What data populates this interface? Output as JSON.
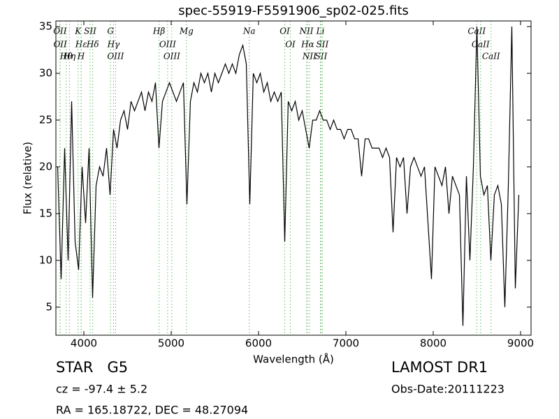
{
  "chart_data": {
    "type": "line",
    "title": "spec-55919-F5591906_sp02-025.fits",
    "xlabel": "Wavelength (Å)",
    "ylabel": "Flux (relative)",
    "xlim": [
      3680,
      9120
    ],
    "ylim": [
      2,
      35.6
    ],
    "xticks": [
      4000,
      5000,
      6000,
      7000,
      8000,
      9000
    ],
    "yticks": [
      5,
      10,
      15,
      20,
      25,
      30,
      35
    ],
    "x": [
      3700,
      3740,
      3780,
      3820,
      3860,
      3900,
      3940,
      3980,
      4020,
      4060,
      4100,
      4140,
      4180,
      4220,
      4260,
      4300,
      4340,
      4380,
      4420,
      4460,
      4500,
      4540,
      4580,
      4620,
      4660,
      4700,
      4740,
      4780,
      4820,
      4860,
      4900,
      4940,
      4980,
      5020,
      5060,
      5100,
      5140,
      5180,
      5220,
      5260,
      5300,
      5340,
      5380,
      5420,
      5460,
      5500,
      5540,
      5580,
      5620,
      5660,
      5700,
      5740,
      5780,
      5820,
      5860,
      5900,
      5940,
      5980,
      6020,
      6060,
      6100,
      6140,
      6180,
      6220,
      6260,
      6300,
      6340,
      6380,
      6420,
      6460,
      6500,
      6540,
      6580,
      6620,
      6660,
      6700,
      6740,
      6780,
      6820,
      6860,
      6900,
      6940,
      6980,
      7020,
      7060,
      7100,
      7140,
      7180,
      7220,
      7260,
      7300,
      7340,
      7380,
      7420,
      7460,
      7500,
      7540,
      7580,
      7620,
      7660,
      7700,
      7740,
      7780,
      7820,
      7860,
      7900,
      7940,
      7980,
      8020,
      8060,
      8100,
      8140,
      8180,
      8220,
      8260,
      8300,
      8340,
      8380,
      8420,
      8460,
      8500,
      8540,
      8580,
      8620,
      8660,
      8700,
      8740,
      8780,
      8820,
      8860,
      8900,
      8940,
      8980
    ],
    "series": [
      {
        "color": "#000000",
        "values": [
          20,
          8,
          22,
          10,
          27,
          12,
          9,
          20,
          14,
          22,
          6,
          18,
          20,
          19,
          22,
          17,
          24,
          22,
          25,
          26,
          24,
          27,
          26,
          27,
          28,
          26,
          28,
          27,
          29,
          22,
          27,
          28,
          29,
          28,
          27,
          28,
          29,
          16,
          27,
          29,
          28,
          30,
          29,
          30,
          28,
          30,
          29,
          30,
          31,
          30,
          31,
          30,
          32,
          33,
          31,
          16,
          30,
          29,
          30,
          28,
          29,
          27,
          28,
          27,
          28,
          12,
          27,
          26,
          27,
          25,
          26,
          24,
          22,
          25,
          25,
          26,
          25,
          25,
          24,
          25,
          24,
          24,
          23,
          24,
          24,
          23,
          23,
          19,
          23,
          23,
          22,
          22,
          22,
          21,
          22,
          21,
          13,
          21,
          20,
          21,
          15,
          20,
          21,
          20,
          19,
          20,
          14,
          8,
          20,
          19,
          18,
          20,
          15,
          19,
          18,
          17,
          3,
          19,
          10,
          20,
          35,
          19,
          17,
          18,
          10,
          17,
          18,
          16,
          5,
          18,
          35,
          7,
          17
        ]
      }
    ],
    "line_color": "#66bb66",
    "spectral_lines": [
      {
        "label": "OII",
        "wavelength": 3727
      },
      {
        "label": "OII",
        "wavelength": 3729
      },
      {
        "label": "Hθ",
        "wavelength": 3798
      },
      {
        "label": "Hη",
        "wavelength": 3835
      },
      {
        "label": "K",
        "wavelength": 3934
      },
      {
        "label": "Hε",
        "wavelength": 3970
      },
      {
        "label": "H",
        "wavelength": 3968
      },
      {
        "label": "SII",
        "wavelength": 4072
      },
      {
        "label": "Hδ",
        "wavelength": 4102
      },
      {
        "label": "G",
        "wavelength": 4305
      },
      {
        "label": "Hγ",
        "wavelength": 4340
      },
      {
        "label": "OIII",
        "wavelength": 4363
      },
      {
        "label": "Hβ",
        "wavelength": 4861
      },
      {
        "label": "OIII",
        "wavelength": 4959
      },
      {
        "label": "OIII",
        "wavelength": 5007
      },
      {
        "label": "Mg",
        "wavelength": 5175
      },
      {
        "label": "Na",
        "wavelength": 5894
      },
      {
        "label": "OI",
        "wavelength": 6300
      },
      {
        "label": "OI",
        "wavelength": 6364
      },
      {
        "label": "NII",
        "wavelength": 6548
      },
      {
        "label": "Hα",
        "wavelength": 6563
      },
      {
        "label": "NII",
        "wavelength": 6583
      },
      {
        "label": "Li",
        "wavelength": 6708
      },
      {
        "label": "SII",
        "wavelength": 6716
      },
      {
        "label": "SII",
        "wavelength": 6731
      },
      {
        "label": "CaII",
        "wavelength": 8498
      },
      {
        "label": "CaII",
        "wavelength": 8542
      },
      {
        "label": "CaII",
        "wavelength": 8662
      }
    ],
    "class": "STAR   G5",
    "redshift": "cz = -97.4 ± 5.2",
    "coords": "RA = 165.18722, DEC = 48.27094",
    "survey": "LAMOST DR1",
    "obs_date": "Obs-Date:20111223"
  }
}
